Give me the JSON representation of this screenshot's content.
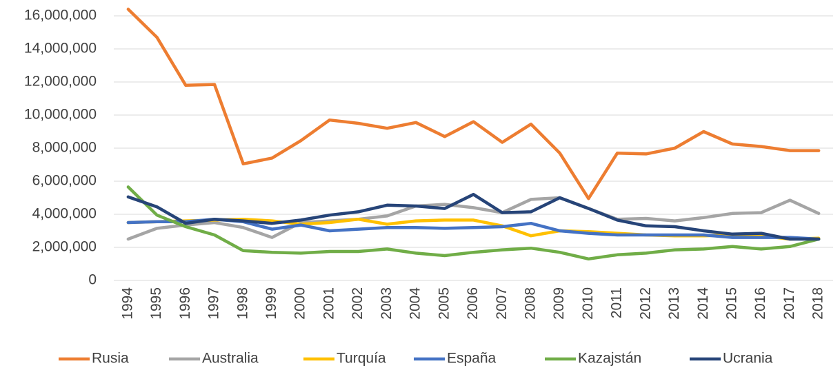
{
  "chart_data": {
    "type": "line",
    "categories": [
      "1994",
      "1995",
      "1996",
      "1997",
      "1998",
      "1999",
      "2000",
      "2001",
      "2002",
      "2003",
      "2004",
      "2005",
      "2006",
      "2007",
      "2008",
      "2009",
      "2010",
      "2011",
      "2012",
      "2013",
      "2014",
      "2015",
      "2016",
      "2017",
      "2018"
    ],
    "series": [
      {
        "name": "Rusia",
        "color": "#ED7D31",
        "values": [
          16400000,
          14700000,
          11800000,
          11850000,
          7050000,
          7400000,
          8450000,
          9700000,
          9500000,
          9200000,
          9550000,
          8700000,
          9600000,
          8350000,
          9450000,
          7700000,
          4950000,
          7700000,
          7650000,
          8000000,
          9000000,
          8250000,
          8100000,
          7850000,
          7850000
        ]
      },
      {
        "name": "Australia",
        "color": "#A5A5A5",
        "values": [
          2500000,
          3150000,
          3350000,
          3500000,
          3200000,
          2600000,
          3500000,
          3600000,
          3700000,
          3900000,
          4500000,
          4600000,
          4400000,
          4100000,
          4900000,
          5000000,
          4350000,
          3700000,
          3750000,
          3600000,
          3800000,
          4050000,
          4100000,
          4850000,
          4050000
        ]
      },
      {
        "name": "Turquía",
        "color": "#FFC000",
        "values": [
          3500000,
          3550000,
          3600000,
          3650000,
          3700000,
          3600000,
          3400000,
          3500000,
          3700000,
          3400000,
          3600000,
          3650000,
          3650000,
          3300000,
          2700000,
          3000000,
          2950000,
          2850000,
          2750000,
          2700000,
          2700000,
          2750000,
          2700000,
          2500000,
          2550000
        ]
      },
      {
        "name": "España",
        "color": "#4472C4",
        "values": [
          3500000,
          3550000,
          3550000,
          3700000,
          3550000,
          3100000,
          3350000,
          3000000,
          3100000,
          3200000,
          3200000,
          3150000,
          3200000,
          3250000,
          3450000,
          3000000,
          2850000,
          2750000,
          2750000,
          2750000,
          2750000,
          2600000,
          2600000,
          2600000,
          2500000
        ]
      },
      {
        "name": "Kazajstán",
        "color": "#70AD47",
        "values": [
          5650000,
          3950000,
          3250000,
          2750000,
          1800000,
          1700000,
          1650000,
          1750000,
          1750000,
          1900000,
          1650000,
          1500000,
          1700000,
          1850000,
          1950000,
          1700000,
          1300000,
          1550000,
          1650000,
          1850000,
          1900000,
          2050000,
          1900000,
          2050000,
          2500000
        ]
      },
      {
        "name": "Ucrania",
        "color": "#264478",
        "values": [
          5050000,
          4450000,
          3450000,
          3700000,
          3600000,
          3450000,
          3650000,
          3950000,
          4150000,
          4550000,
          4500000,
          4350000,
          5200000,
          4100000,
          4150000,
          5000000,
          4350000,
          3650000,
          3300000,
          3250000,
          3000000,
          2800000,
          2850000,
          2500000,
          2500000
        ]
      }
    ],
    "ylim": [
      0,
      16000000
    ],
    "yticks": [
      0,
      {
        "value": 2000000,
        "label": "2,000,000"
      },
      {
        "value": 4000000,
        "label": "4,000,000"
      },
      {
        "value": 6000000,
        "label": "6,000,000"
      },
      {
        "value": 8000000,
        "label": "8,000,000"
      },
      {
        "value": 10000000,
        "label": "10,000,000"
      },
      {
        "value": 12000000,
        "label": "12,000,000"
      },
      {
        "value": 14000000,
        "label": "14,000,000"
      },
      {
        "value": 16000000,
        "label": "16,000,000"
      }
    ],
    "grid": true,
    "legend": "bottom"
  }
}
